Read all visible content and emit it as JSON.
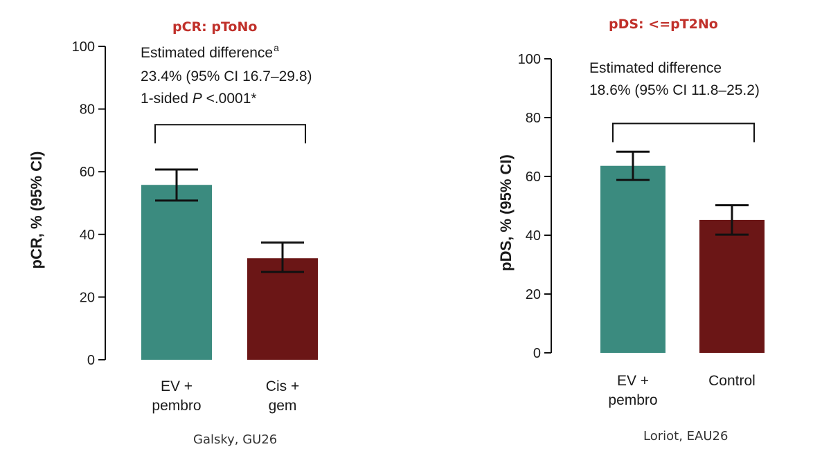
{
  "colors": {
    "treatment": "#3b8b7f",
    "control": "#6b1616",
    "axis": "#111111",
    "title": "#c0302a"
  },
  "chart_data": [
    {
      "type": "bar",
      "title": "pCR: pToNo",
      "ylabel": "pCR, % (95% CI)",
      "ylim": [
        0,
        100
      ],
      "yticks": [
        0,
        20,
        40,
        60,
        80,
        100
      ],
      "categories": [
        [
          "EV +",
          "pembro"
        ],
        [
          "Cis +",
          "gem"
        ]
      ],
      "values": [
        55.8,
        32.4
      ],
      "ci_low": [
        50.8,
        28.0
      ],
      "ci_high": [
        60.7,
        37.4
      ],
      "bar_colors": [
        "treatment",
        "control"
      ],
      "annotation": {
        "line1": "Estimated difference",
        "line1_sup": "a",
        "line2": "23.4% (95% CI 16.7–29.8)",
        "line3_pre": "1-sided ",
        "line3_italic": "P",
        "line3_post": " <.0001*"
      },
      "bracket_y": 75,
      "source": "Galsky, GU26"
    },
    {
      "type": "bar",
      "title": "pDS: <=pT2No",
      "ylabel": "pDS, % (95% CI)",
      "ylim": [
        0,
        100
      ],
      "yticks": [
        0,
        20,
        40,
        60,
        80,
        100
      ],
      "categories": [
        [
          "EV +",
          "pembro"
        ],
        [
          "Control"
        ]
      ],
      "values": [
        63.6,
        45.2
      ],
      "ci_low": [
        58.8,
        40.2
      ],
      "ci_high": [
        68.4,
        50.2
      ],
      "bar_colors": [
        "treatment",
        "control"
      ],
      "annotation": {
        "line1": "Estimated difference",
        "line2": "18.6% (95% CI 11.8–25.2)"
      },
      "bracket_y": 78,
      "source": "Loriot, EAU26"
    }
  ]
}
